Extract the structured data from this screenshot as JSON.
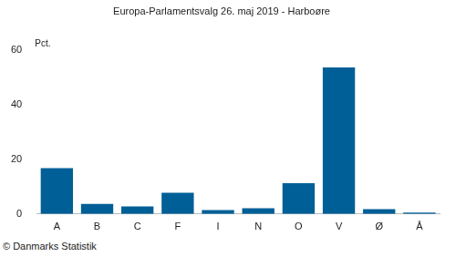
{
  "chart_data": {
    "type": "bar",
    "title": "Europa-Parlamentsvalg 26. maj 2019 - Harboøre",
    "ylabel": "Pct.",
    "annotation": "© Danmarks Statistik",
    "categories": [
      "A",
      "B",
      "C",
      "F",
      "I",
      "N",
      "O",
      "V",
      "Ø",
      "Å"
    ],
    "values": [
      16.8,
      3.7,
      2.8,
      7.8,
      1.4,
      2.1,
      11.3,
      53.7,
      1.8,
      0.5
    ],
    "color": "#005f96",
    "ylim": [
      0,
      60
    ],
    "yticks": [
      0,
      20,
      40,
      60
    ],
    "grid": false
  }
}
